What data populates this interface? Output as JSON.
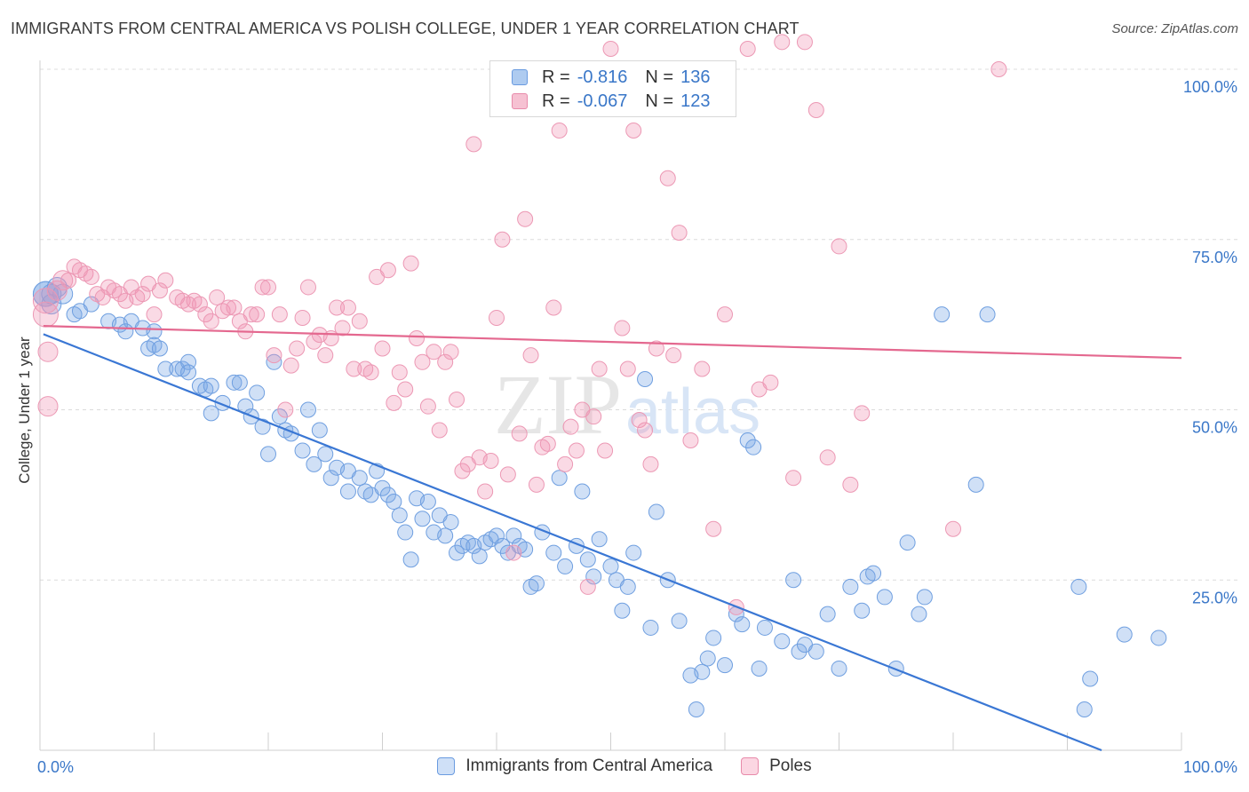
{
  "title": "IMMIGRANTS FROM CENTRAL AMERICA VS POLISH COLLEGE, UNDER 1 YEAR CORRELATION CHART",
  "source": "Source: ZipAtlas.com",
  "watermark": {
    "zip": "ZIP",
    "atlas": "atlas"
  },
  "legend_top": {
    "rows": [
      {
        "r_label": "R =",
        "r_value": "-0.816",
        "n_label": "N =",
        "n_value": "136",
        "fill": "#aecbf0",
        "stroke": "#6a9be0"
      },
      {
        "r_label": "R =",
        "r_value": "-0.067",
        "n_label": "N =",
        "n_value": "123",
        "fill": "#f6c1d2",
        "stroke": "#e88aaa"
      }
    ]
  },
  "legend_bottom": [
    {
      "label": "Immigrants from Central America",
      "fill": "#cfe0f7",
      "stroke": "#6a9be0"
    },
    {
      "label": "Poles",
      "fill": "#fbd6e2",
      "stroke": "#e88aaa"
    }
  ],
  "chart_data": {
    "type": "scatter",
    "title": "IMMIGRANTS FROM CENTRAL AMERICA VS POLISH COLLEGE, UNDER 1 YEAR CORRELATION CHART",
    "xlabel": "",
    "ylabel": "College, Under 1 year",
    "xlim": [
      0,
      100
    ],
    "ylim": [
      0,
      100
    ],
    "x_tick_labels": [
      "0.0%",
      "100.0%"
    ],
    "y_tick_labels": [
      "25.0%",
      "50.0%",
      "75.0%",
      "100.0%"
    ],
    "y_ticks": [
      25,
      50,
      75,
      100
    ],
    "grid": true,
    "legend_position": "top-center",
    "colors": {
      "blue": "#3a77d4",
      "pink": "#e4688f",
      "blue_fill": "rgba(120,165,230,0.35)",
      "pink_fill": "rgba(240,150,180,0.35)",
      "axis_text": "#3a77c8"
    },
    "series": [
      {
        "name": "Immigrants from Central America",
        "r": -0.816,
        "n": 136,
        "trend": [
          [
            0.3,
            61.1
          ],
          [
            93,
            0
          ]
        ],
        "points": [
          [
            0.5,
            67
          ],
          [
            0.5,
            67
          ],
          [
            1,
            65.5
          ],
          [
            1,
            67
          ],
          [
            1.5,
            68
          ],
          [
            2,
            67
          ],
          [
            3,
            64
          ],
          [
            3.5,
            64.5
          ],
          [
            4.5,
            65.5
          ],
          [
            6,
            63
          ],
          [
            7,
            62.5
          ],
          [
            8,
            63
          ],
          [
            7.5,
            61.5
          ],
          [
            9,
            62
          ],
          [
            10,
            61.5
          ],
          [
            9.5,
            59
          ],
          [
            10,
            59.5
          ],
          [
            10.5,
            59
          ],
          [
            11,
            56
          ],
          [
            12,
            56
          ],
          [
            12.5,
            56
          ],
          [
            13,
            57
          ],
          [
            13,
            55.5
          ],
          [
            14,
            53.5
          ],
          [
            14.5,
            53
          ],
          [
            15,
            49.5
          ],
          [
            15,
            53.5
          ],
          [
            16,
            51
          ],
          [
            17,
            54
          ],
          [
            17.5,
            54
          ],
          [
            18,
            50.5
          ],
          [
            18.5,
            49
          ],
          [
            19,
            52.5
          ],
          [
            19.5,
            47.5
          ],
          [
            20,
            43.5
          ],
          [
            20.5,
            57
          ],
          [
            21,
            49
          ],
          [
            21.5,
            47
          ],
          [
            22,
            46.5
          ],
          [
            23,
            44
          ],
          [
            23.5,
            50
          ],
          [
            24,
            42
          ],
          [
            24.5,
            47
          ],
          [
            25,
            43.5
          ],
          [
            25.5,
            40
          ],
          [
            26,
            41.5
          ],
          [
            27,
            41
          ],
          [
            27,
            38
          ],
          [
            28,
            40
          ],
          [
            28.5,
            38
          ],
          [
            29,
            37.5
          ],
          [
            29.5,
            41
          ],
          [
            30,
            38.5
          ],
          [
            30.5,
            37.5
          ],
          [
            31,
            36.5
          ],
          [
            31.5,
            34.5
          ],
          [
            32,
            32
          ],
          [
            32.5,
            28
          ],
          [
            33,
            37
          ],
          [
            33.5,
            34
          ],
          [
            34,
            36.5
          ],
          [
            34.5,
            32
          ],
          [
            35,
            34.5
          ],
          [
            35.5,
            31.5
          ],
          [
            36,
            33.5
          ],
          [
            36.5,
            29
          ],
          [
            37,
            30
          ],
          [
            37.5,
            30.5
          ],
          [
            38,
            30
          ],
          [
            38.5,
            28.5
          ],
          [
            39,
            30.5
          ],
          [
            39.5,
            31
          ],
          [
            40,
            31.5
          ],
          [
            40.5,
            30
          ],
          [
            41,
            29
          ],
          [
            41.5,
            31.5
          ],
          [
            42,
            30
          ],
          [
            42.5,
            29.5
          ],
          [
            43,
            24
          ],
          [
            43.5,
            24.5
          ],
          [
            44,
            32
          ],
          [
            45,
            29
          ],
          [
            45.5,
            40
          ],
          [
            46,
            27
          ],
          [
            47,
            30
          ],
          [
            47.5,
            38
          ],
          [
            48,
            28
          ],
          [
            48.5,
            25.5
          ],
          [
            49,
            31
          ],
          [
            50,
            27
          ],
          [
            50.5,
            25
          ],
          [
            51,
            20.5
          ],
          [
            51.5,
            24
          ],
          [
            52,
            29
          ],
          [
            53,
            54.5
          ],
          [
            53.5,
            18
          ],
          [
            54,
            35
          ],
          [
            55,
            25
          ],
          [
            56,
            19
          ],
          [
            57,
            11
          ],
          [
            57.5,
            6
          ],
          [
            58,
            11.5
          ],
          [
            58.5,
            13.5
          ],
          [
            59,
            16.5
          ],
          [
            60,
            12.5
          ],
          [
            61,
            20
          ],
          [
            61.5,
            18.5
          ],
          [
            62,
            45.5
          ],
          [
            62.5,
            44.5
          ],
          [
            63,
            12
          ],
          [
            63.5,
            18
          ],
          [
            65,
            16
          ],
          [
            66,
            25
          ],
          [
            66.5,
            14.5
          ],
          [
            67,
            15.5
          ],
          [
            68,
            14.5
          ],
          [
            69,
            20
          ],
          [
            70,
            12
          ],
          [
            71,
            24
          ],
          [
            72,
            20.5
          ],
          [
            72.5,
            25.5
          ],
          [
            73,
            26
          ],
          [
            74,
            22.5
          ],
          [
            75,
            12
          ],
          [
            76,
            30.5
          ],
          [
            77,
            20
          ],
          [
            77.5,
            22.5
          ],
          [
            79,
            64
          ],
          [
            82,
            39
          ],
          [
            83,
            64
          ],
          [
            91,
            24
          ],
          [
            91.5,
            6
          ],
          [
            92,
            10.5
          ],
          [
            95,
            17
          ],
          [
            98,
            16.5
          ]
        ]
      },
      {
        "name": "Poles",
        "r": -0.067,
        "n": 123,
        "trend": [
          [
            0.3,
            62.3
          ],
          [
            100,
            57.6
          ]
        ],
        "points": [
          [
            0.5,
            66
          ],
          [
            0.5,
            64
          ],
          [
            0.7,
            58.5
          ],
          [
            0.7,
            50.5
          ],
          [
            1.5,
            67.5
          ],
          [
            2,
            69
          ],
          [
            2.5,
            69
          ],
          [
            3,
            71
          ],
          [
            3.5,
            70.5
          ],
          [
            4,
            70
          ],
          [
            4.5,
            69.5
          ],
          [
            5,
            67
          ],
          [
            5.5,
            66.5
          ],
          [
            6,
            68
          ],
          [
            6.5,
            67.5
          ],
          [
            7,
            67
          ],
          [
            7.5,
            66
          ],
          [
            8,
            68
          ],
          [
            8.5,
            66.5
          ],
          [
            9,
            67
          ],
          [
            9.5,
            68.5
          ],
          [
            10,
            64
          ],
          [
            10.5,
            67.5
          ],
          [
            11,
            69
          ],
          [
            12,
            66.5
          ],
          [
            12.5,
            66
          ],
          [
            13,
            65.5
          ],
          [
            13.5,
            66
          ],
          [
            14,
            65.5
          ],
          [
            14.5,
            64
          ],
          [
            15,
            63
          ],
          [
            15.5,
            66.5
          ],
          [
            16,
            64.5
          ],
          [
            16.5,
            65
          ],
          [
            17,
            65
          ],
          [
            17.5,
            63
          ],
          [
            18,
            61.5
          ],
          [
            18.5,
            64
          ],
          [
            19,
            64
          ],
          [
            19.5,
            68
          ],
          [
            20,
            68
          ],
          [
            20.5,
            58
          ],
          [
            21,
            64
          ],
          [
            21.5,
            50
          ],
          [
            22,
            56.5
          ],
          [
            22.5,
            59
          ],
          [
            23,
            63.5
          ],
          [
            23.5,
            68
          ],
          [
            24,
            60
          ],
          [
            24.5,
            61
          ],
          [
            25,
            58
          ],
          [
            25.5,
            60.5
          ],
          [
            26,
            65
          ],
          [
            26.5,
            62
          ],
          [
            27,
            65
          ],
          [
            27.5,
            56
          ],
          [
            28,
            63
          ],
          [
            28.5,
            56
          ],
          [
            29,
            55.5
          ],
          [
            29.5,
            69.5
          ],
          [
            30,
            59
          ],
          [
            30.5,
            70.5
          ],
          [
            31,
            51
          ],
          [
            31.5,
            55.5
          ],
          [
            32,
            53
          ],
          [
            32.5,
            71.5
          ],
          [
            33,
            60.5
          ],
          [
            33.5,
            57
          ],
          [
            34,
            50.5
          ],
          [
            34.5,
            58.5
          ],
          [
            35,
            47
          ],
          [
            35.5,
            57
          ],
          [
            36,
            58.5
          ],
          [
            36.5,
            51.5
          ],
          [
            37,
            41
          ],
          [
            37.5,
            42
          ],
          [
            38,
            89
          ],
          [
            38.5,
            43
          ],
          [
            39,
            38
          ],
          [
            39.5,
            42.5
          ],
          [
            40,
            63.5
          ],
          [
            40.5,
            75
          ],
          [
            41,
            40.5
          ],
          [
            41.5,
            29
          ],
          [
            42,
            46.5
          ],
          [
            42.5,
            78
          ],
          [
            43,
            58
          ],
          [
            43.5,
            39
          ],
          [
            44,
            44.5
          ],
          [
            44.5,
            45
          ],
          [
            45,
            65
          ],
          [
            45.5,
            91
          ],
          [
            46,
            42
          ],
          [
            46.5,
            47.5
          ],
          [
            47,
            44
          ],
          [
            47.5,
            50
          ],
          [
            48,
            24
          ],
          [
            48.5,
            49
          ],
          [
            49,
            56
          ],
          [
            49.5,
            44
          ],
          [
            50,
            103
          ],
          [
            51,
            62
          ],
          [
            51.5,
            56
          ],
          [
            52,
            91
          ],
          [
            52.5,
            48.5
          ],
          [
            53,
            47
          ],
          [
            53.5,
            42
          ],
          [
            54,
            59
          ],
          [
            55,
            84
          ],
          [
            55.5,
            58
          ],
          [
            56,
            76
          ],
          [
            57,
            45.5
          ],
          [
            58,
            56
          ],
          [
            59,
            32.5
          ],
          [
            60,
            64
          ],
          [
            61,
            21
          ],
          [
            62,
            103
          ],
          [
            63,
            53
          ],
          [
            64,
            54
          ],
          [
            65,
            104
          ],
          [
            66,
            40
          ],
          [
            67,
            104
          ],
          [
            68,
            94
          ],
          [
            69,
            43
          ],
          [
            70,
            74
          ],
          [
            71,
            39
          ],
          [
            72,
            49.5
          ],
          [
            80,
            32.5
          ],
          [
            84,
            100
          ]
        ]
      }
    ]
  }
}
